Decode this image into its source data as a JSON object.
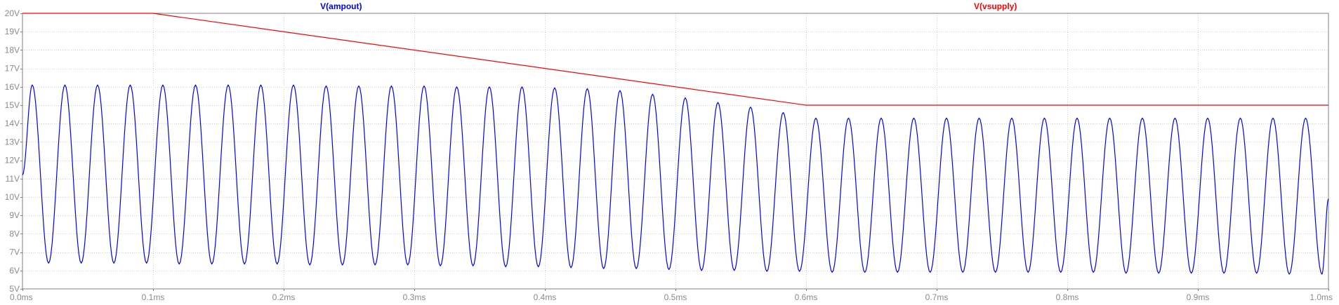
{
  "colors": {
    "background": "#ffffff",
    "plot_frame": "#808080",
    "grid": "#d0d0d0",
    "tick_text": "#8a8a8a",
    "ampout": "#0000ff",
    "vsupply": "#ff0000"
  },
  "chart_data": {
    "type": "line",
    "title": "",
    "xlabel": "",
    "ylabel": "",
    "xlim": [
      0,
      1.0
    ],
    "ylim": [
      5,
      20
    ],
    "grid": true,
    "legend": "top",
    "x_ticks": [
      {
        "value": 0.0,
        "label": "0.0ms"
      },
      {
        "value": 0.1,
        "label": "0.1ms"
      },
      {
        "value": 0.2,
        "label": "0.2ms"
      },
      {
        "value": 0.3,
        "label": "0.3ms"
      },
      {
        "value": 0.4,
        "label": "0.4ms"
      },
      {
        "value": 0.5,
        "label": "0.5ms"
      },
      {
        "value": 0.6,
        "label": "0.6ms"
      },
      {
        "value": 0.7,
        "label": "0.7ms"
      },
      {
        "value": 0.8,
        "label": "0.8ms"
      },
      {
        "value": 0.9,
        "label": "0.9ms"
      },
      {
        "value": 1.0,
        "label": "1.0ms"
      }
    ],
    "y_ticks": [
      {
        "value": 5,
        "label": "5V"
      },
      {
        "value": 6,
        "label": "6V"
      },
      {
        "value": 7,
        "label": "7V"
      },
      {
        "value": 8,
        "label": "8V"
      },
      {
        "value": 9,
        "label": "9V"
      },
      {
        "value": 10,
        "label": "10V"
      },
      {
        "value": 11,
        "label": "11V"
      },
      {
        "value": 12,
        "label": "12V"
      },
      {
        "value": 13,
        "label": "13V"
      },
      {
        "value": 14,
        "label": "14V"
      },
      {
        "value": 15,
        "label": "15V"
      },
      {
        "value": 16,
        "label": "16V"
      },
      {
        "value": 17,
        "label": "17V"
      },
      {
        "value": 18,
        "label": "18V"
      },
      {
        "value": 19,
        "label": "19V"
      },
      {
        "value": 20,
        "label": "20V"
      }
    ],
    "series": [
      {
        "name": "V(vsupply)",
        "color": "#ff0000",
        "x": [
          0.0,
          0.1,
          0.6,
          1.0
        ],
        "y": [
          20,
          20,
          15,
          15
        ]
      },
      {
        "name": "V(ampout)",
        "color": "#0000ff",
        "waveform": "sine",
        "cycles": 40,
        "period": 0.025,
        "start_value": 11.2,
        "peaks": [
          {
            "x": 0.0075,
            "y": 16.1
          },
          {
            "x": 0.0325,
            "y": 16.1
          },
          {
            "x": 0.0575,
            "y": 16.1
          },
          {
            "x": 0.0825,
            "y": 16.1
          },
          {
            "x": 0.1075,
            "y": 16.1
          },
          {
            "x": 0.1325,
            "y": 16.1
          },
          {
            "x": 0.1575,
            "y": 16.1
          },
          {
            "x": 0.1825,
            "y": 16.1
          },
          {
            "x": 0.2075,
            "y": 16.1
          },
          {
            "x": 0.2325,
            "y": 16.05
          },
          {
            "x": 0.2575,
            "y": 16.05
          },
          {
            "x": 0.2825,
            "y": 16.05
          },
          {
            "x": 0.3075,
            "y": 16.05
          },
          {
            "x": 0.3325,
            "y": 16.0
          },
          {
            "x": 0.3575,
            "y": 16.0
          },
          {
            "x": 0.3825,
            "y": 16.0
          },
          {
            "x": 0.4075,
            "y": 15.95
          },
          {
            "x": 0.4325,
            "y": 15.9
          },
          {
            "x": 0.4575,
            "y": 15.8
          },
          {
            "x": 0.4825,
            "y": 15.6
          },
          {
            "x": 0.5075,
            "y": 15.4
          },
          {
            "x": 0.5325,
            "y": 15.15
          },
          {
            "x": 0.5575,
            "y": 14.9
          },
          {
            "x": 0.5825,
            "y": 14.6
          },
          {
            "x": 0.6075,
            "y": 14.3
          },
          {
            "x": 0.6325,
            "y": 14.3
          },
          {
            "x": 0.6575,
            "y": 14.3
          },
          {
            "x": 0.6825,
            "y": 14.3
          },
          {
            "x": 0.7075,
            "y": 14.3
          },
          {
            "x": 0.7325,
            "y": 14.3
          },
          {
            "x": 0.7575,
            "y": 14.3
          },
          {
            "x": 0.7825,
            "y": 14.3
          },
          {
            "x": 0.8075,
            "y": 14.3
          },
          {
            "x": 0.8325,
            "y": 14.3
          },
          {
            "x": 0.8575,
            "y": 14.3
          },
          {
            "x": 0.8825,
            "y": 14.3
          },
          {
            "x": 0.9075,
            "y": 14.3
          },
          {
            "x": 0.9325,
            "y": 14.3
          },
          {
            "x": 0.9575,
            "y": 14.3
          },
          {
            "x": 0.9825,
            "y": 14.3
          }
        ],
        "troughs": [
          {
            "x": 0.02,
            "y": 6.4
          },
          {
            "x": 0.045,
            "y": 6.4
          },
          {
            "x": 0.07,
            "y": 6.4
          },
          {
            "x": 0.095,
            "y": 6.4
          },
          {
            "x": 0.12,
            "y": 6.35
          },
          {
            "x": 0.145,
            "y": 6.35
          },
          {
            "x": 0.17,
            "y": 6.35
          },
          {
            "x": 0.195,
            "y": 6.35
          },
          {
            "x": 0.22,
            "y": 6.3
          },
          {
            "x": 0.245,
            "y": 6.3
          },
          {
            "x": 0.27,
            "y": 6.3
          },
          {
            "x": 0.295,
            "y": 6.3
          },
          {
            "x": 0.32,
            "y": 6.25
          },
          {
            "x": 0.345,
            "y": 6.25
          },
          {
            "x": 0.37,
            "y": 6.2
          },
          {
            "x": 0.395,
            "y": 6.2
          },
          {
            "x": 0.42,
            "y": 6.15
          },
          {
            "x": 0.445,
            "y": 6.1
          },
          {
            "x": 0.47,
            "y": 6.1
          },
          {
            "x": 0.495,
            "y": 6.05
          },
          {
            "x": 0.52,
            "y": 6.0
          },
          {
            "x": 0.545,
            "y": 6.0
          },
          {
            "x": 0.57,
            "y": 5.95
          },
          {
            "x": 0.595,
            "y": 5.95
          },
          {
            "x": 0.62,
            "y": 5.9
          },
          {
            "x": 0.645,
            "y": 5.9
          },
          {
            "x": 0.67,
            "y": 5.9
          },
          {
            "x": 0.695,
            "y": 5.9
          },
          {
            "x": 0.72,
            "y": 5.9
          },
          {
            "x": 0.745,
            "y": 5.9
          },
          {
            "x": 0.77,
            "y": 5.9
          },
          {
            "x": 0.795,
            "y": 5.9
          },
          {
            "x": 0.82,
            "y": 5.9
          },
          {
            "x": 0.845,
            "y": 5.85
          },
          {
            "x": 0.87,
            "y": 5.85
          },
          {
            "x": 0.895,
            "y": 5.85
          },
          {
            "x": 0.92,
            "y": 5.85
          },
          {
            "x": 0.945,
            "y": 5.85
          },
          {
            "x": 0.97,
            "y": 5.8
          },
          {
            "x": 0.995,
            "y": 5.8
          }
        ],
        "end_value": 9.9
      }
    ]
  }
}
